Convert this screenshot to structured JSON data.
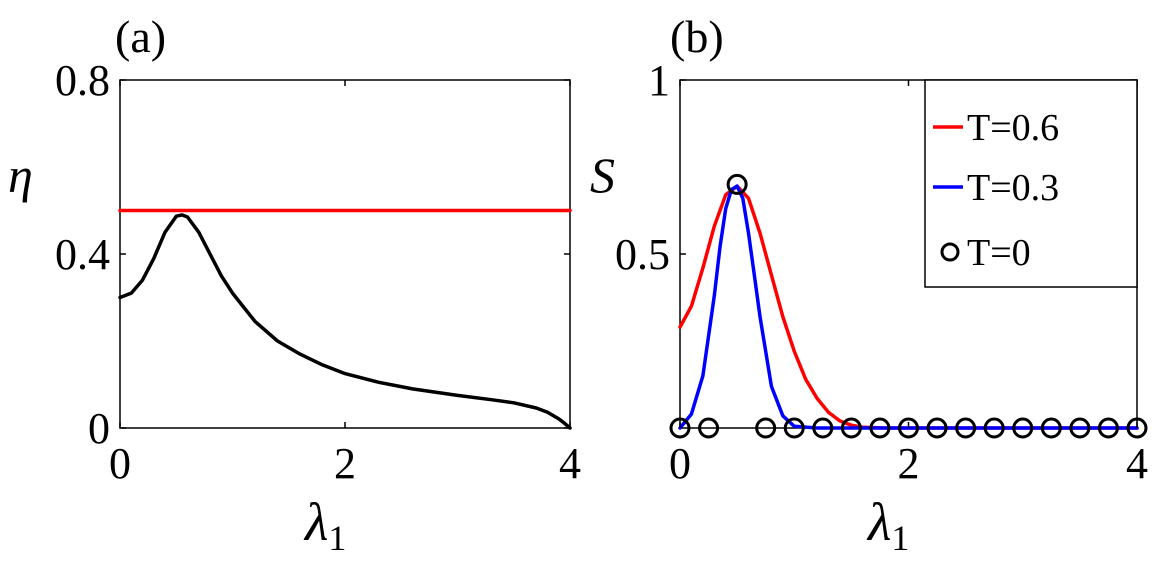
{
  "chart_data": [
    {
      "panel_label": "(a)",
      "type": "line",
      "ylabel": "η",
      "xlabel": "λ",
      "xlabel_subscript": "1",
      "xlim": [
        0,
        4
      ],
      "ylim": [
        0,
        0.8
      ],
      "xticks": [
        0,
        2,
        4
      ],
      "xtick_labels": [
        "0",
        "2",
        "4"
      ],
      "yticks": [
        0,
        0.4,
        0.8
      ],
      "ytick_labels": [
        "0",
        "0.4",
        "0.8"
      ],
      "grid": false,
      "series": [
        {
          "color": "#ff0000",
          "x": [
            0,
            4
          ],
          "y": [
            0.5,
            0.5
          ]
        },
        {
          "color": "#000000",
          "x": [
            0,
            0.1,
            0.2,
            0.3,
            0.4,
            0.5,
            0.55,
            0.6,
            0.7,
            0.8,
            0.9,
            1.0,
            1.2,
            1.4,
            1.6,
            1.8,
            2.0,
            2.3,
            2.6,
            3.0,
            3.3,
            3.5,
            3.7,
            3.8,
            3.9,
            3.95,
            4.0
          ],
          "y": [
            0.3,
            0.31,
            0.34,
            0.39,
            0.45,
            0.487,
            0.49,
            0.485,
            0.45,
            0.4,
            0.35,
            0.31,
            0.245,
            0.2,
            0.17,
            0.145,
            0.125,
            0.105,
            0.09,
            0.075,
            0.065,
            0.058,
            0.046,
            0.036,
            0.021,
            0.011,
            0.0
          ]
        }
      ]
    },
    {
      "panel_label": "(b)",
      "type": "line",
      "ylabel": "S",
      "xlabel": "λ",
      "xlabel_subscript": "1",
      "xlim": [
        0,
        4
      ],
      "ylim": [
        0,
        1
      ],
      "xticks": [
        0,
        2,
        4
      ],
      "xtick_labels": [
        "0",
        "2",
        "4"
      ],
      "yticks": [
        0.5,
        1
      ],
      "ytick_labels": [
        "0.5",
        "1"
      ],
      "grid": false,
      "legend_position": "top-right",
      "series": [
        {
          "name": "T=0.6",
          "color": "#ff0000",
          "style": "line",
          "x": [
            0,
            0.1,
            0.2,
            0.3,
            0.4,
            0.5,
            0.6,
            0.7,
            0.8,
            0.9,
            1.0,
            1.1,
            1.2,
            1.3,
            1.4,
            1.5,
            1.6,
            1.8,
            2.0,
            3.0,
            4.0
          ],
          "y": [
            0.29,
            0.35,
            0.46,
            0.58,
            0.67,
            0.695,
            0.66,
            0.56,
            0.44,
            0.32,
            0.22,
            0.14,
            0.085,
            0.045,
            0.02,
            0.008,
            0.002,
            0.0,
            0.0,
            0.0,
            0.0
          ]
        },
        {
          "name": "T=0.3",
          "color": "#0000ff",
          "style": "line",
          "x": [
            0,
            0.1,
            0.2,
            0.3,
            0.35,
            0.4,
            0.45,
            0.5,
            0.55,
            0.6,
            0.65,
            0.7,
            0.8,
            0.9,
            1.0,
            1.2,
            2.0,
            4.0
          ],
          "y": [
            0.0,
            0.04,
            0.15,
            0.38,
            0.52,
            0.63,
            0.685,
            0.695,
            0.66,
            0.56,
            0.44,
            0.32,
            0.12,
            0.035,
            0.005,
            0.0,
            0.0,
            0.0
          ]
        },
        {
          "name": "T=0",
          "color": "#000000",
          "style": "markers",
          "marker": "circle",
          "x": [
            0,
            0.25,
            0.5,
            0.75,
            1.0,
            1.25,
            1.5,
            1.75,
            2.0,
            2.25,
            2.5,
            2.75,
            3.0,
            3.25,
            3.5,
            3.75,
            4.0
          ],
          "y": [
            0,
            0,
            0.7,
            0,
            0,
            0,
            0,
            0,
            0,
            0,
            0,
            0,
            0,
            0,
            0,
            0,
            0
          ]
        }
      ]
    }
  ]
}
